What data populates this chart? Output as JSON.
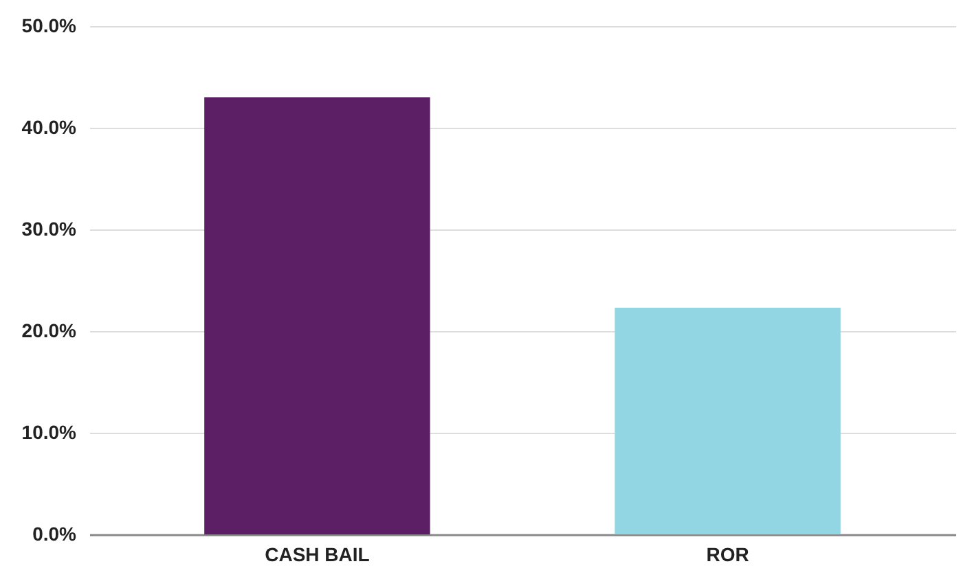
{
  "chart_data": {
    "type": "bar",
    "categories": [
      "CASH BAIL",
      "ROR"
    ],
    "values": [
      43.0,
      22.3
    ],
    "colors": [
      "#5c1f66",
      "#92d5e3"
    ],
    "ylim": [
      0,
      50
    ],
    "yticks": [
      {
        "value": 0,
        "label": "0.0%"
      },
      {
        "value": 10,
        "label": "10.0%"
      },
      {
        "value": 20,
        "label": "20.0%"
      },
      {
        "value": 30,
        "label": "30.0%"
      },
      {
        "value": 40,
        "label": "40.0%"
      },
      {
        "value": 50,
        "label": "50.0%"
      }
    ],
    "grid": "y"
  }
}
